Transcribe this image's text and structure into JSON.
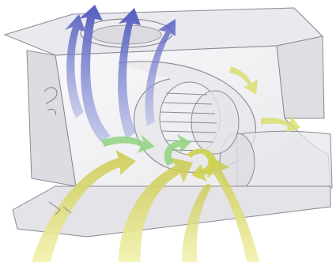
{
  "diagram": {
    "labels": [],
    "colors": {
      "background": "#ffffff",
      "housing_fill": "#e6e6ea",
      "housing_edge": "#7a7a82",
      "hot_flow": "#5b66c4",
      "cool_flow": "#d9dc6a",
      "mid_flow": "#8fd37e"
    },
    "icons": [
      "housing",
      "duct",
      "fan-rotor",
      "flow-arrow"
    ]
  }
}
